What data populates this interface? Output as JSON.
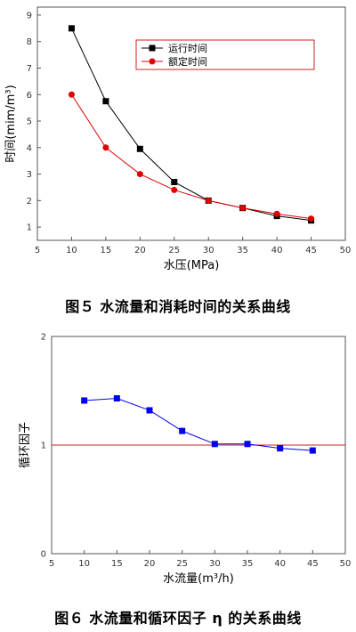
{
  "chart_data": [
    {
      "type": "line",
      "title": "",
      "xlabel": "水压(MPa)",
      "ylabel": "时间(mim/m³)",
      "xlim": [
        5,
        50
      ],
      "ylim": [
        0.5,
        9.3
      ],
      "xticks": [
        5,
        10,
        15,
        20,
        25,
        30,
        35,
        40,
        45,
        50
      ],
      "yticks": [
        1,
        2,
        3,
        4,
        5,
        6,
        7,
        8,
        9
      ],
      "x": [
        10,
        15,
        20,
        25,
        30,
        35,
        40,
        45
      ],
      "series": [
        {
          "name": "运行时间",
          "color": "#000000",
          "marker": "square",
          "values": [
            8.5,
            5.75,
            3.95,
            2.7,
            2.0,
            1.72,
            1.42,
            1.25
          ]
        },
        {
          "name": "额定时间",
          "color": "#e00000",
          "marker": "circle",
          "values": [
            6.0,
            4.0,
            3.0,
            2.4,
            2.0,
            1.72,
            1.5,
            1.32
          ]
        }
      ],
      "legend_position": "top-right",
      "grid": false
    },
    {
      "type": "line",
      "title": "",
      "xlabel": "水流量(m³/h)",
      "ylabel": "循环因子",
      "xlim": [
        5,
        50
      ],
      "ylim": [
        0,
        2
      ],
      "xticks": [
        5,
        10,
        15,
        20,
        25,
        30,
        35,
        40,
        45,
        50
      ],
      "yticks": [
        0,
        1,
        2
      ],
      "x": [
        10,
        15,
        20,
        25,
        30,
        35,
        40,
        45
      ],
      "series": [
        {
          "color": "#0000ee",
          "marker": "square",
          "values": [
            1.41,
            1.43,
            1.32,
            1.13,
            1.01,
            1.01,
            0.97,
            0.95
          ]
        }
      ],
      "reference_line": {
        "y": 1,
        "color": "#cc2222"
      },
      "grid": false
    }
  ],
  "captions": {
    "fig5": "图５  水流量和消耗时间的关系曲线",
    "fig6": "图６  水流量和循环因子 η 的关系曲线"
  }
}
